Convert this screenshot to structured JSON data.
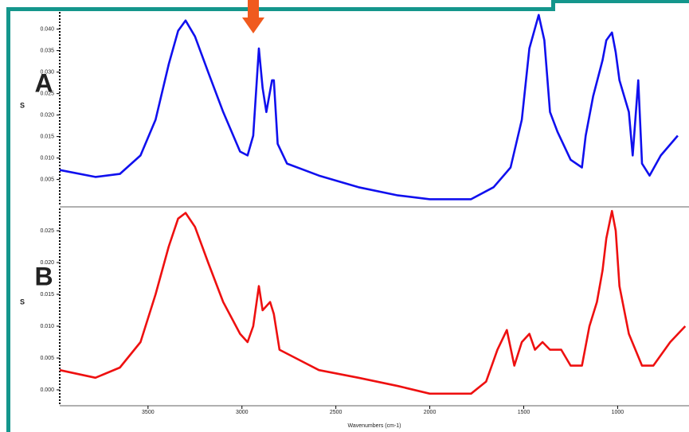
{
  "chart_data": [
    {
      "type": "line",
      "annotation": "A",
      "ylabel": "S",
      "color": "#1010ee",
      "x": [
        3970,
        3780,
        3650,
        3540,
        3460,
        3390,
        3340,
        3300,
        3250,
        3180,
        3100,
        3010,
        2970,
        2940,
        2910,
        2890,
        2870,
        2840,
        2830,
        2810,
        2760,
        2590,
        2380,
        2170,
        2000,
        1780,
        1660,
        1570,
        1510,
        1470,
        1420,
        1390,
        1360,
        1320,
        1250,
        1190,
        1170,
        1130,
        1080,
        1060,
        1030,
        1010,
        990,
        940,
        920,
        890,
        870,
        830,
        770,
        680
      ],
      "values": [
        0.0072,
        0.0056,
        0.0063,
        0.0106,
        0.0189,
        0.0318,
        0.0396,
        0.042,
        0.0383,
        0.03,
        0.0207,
        0.0115,
        0.0106,
        0.0152,
        0.0355,
        0.0263,
        0.0207,
        0.0281,
        0.0281,
        0.0133,
        0.0087,
        0.0059,
        0.0032,
        0.0013,
        0.0004,
        0.0004,
        0.0032,
        0.0078,
        0.0189,
        0.0355,
        0.0433,
        0.0374,
        0.0207,
        0.0161,
        0.0096,
        0.0078,
        0.0152,
        0.0244,
        0.0328,
        0.0374,
        0.0392,
        0.0346,
        0.0281,
        0.0207,
        0.0106,
        0.0281,
        0.0087,
        0.0059,
        0.0106,
        0.0152
      ],
      "xlim": [
        3970,
        620
      ],
      "ylim": [
        -0.001,
        0.044
      ],
      "yticks": [
        0.005,
        {
          "value": 0.01,
          "label": "0.010"
        },
        0.015,
        {
          "value": 0.02,
          "label": "0.020"
        },
        0.025,
        {
          "value": 0.03,
          "label": "0.030"
        },
        0.035,
        {
          "value": 0.04,
          "label": "0.040"
        }
      ]
    },
    {
      "type": "line",
      "annotation": "B",
      "ylabel": "S",
      "color": "#ee1010",
      "xlabel": "Wavenumbers (cm-1)",
      "x": [
        3970,
        3780,
        3650,
        3540,
        3460,
        3390,
        3340,
        3300,
        3250,
        3180,
        3100,
        3010,
        2970,
        2940,
        2910,
        2890,
        2850,
        2830,
        2800,
        2590,
        2380,
        2170,
        2000,
        1780,
        1700,
        1640,
        1590,
        1550,
        1510,
        1470,
        1440,
        1400,
        1360,
        1300,
        1250,
        1190,
        1150,
        1110,
        1080,
        1060,
        1030,
        1010,
        990,
        940,
        870,
        810,
        720,
        640
      ],
      "values": [
        0.0031,
        0.0019,
        0.0035,
        0.0075,
        0.015,
        0.0225,
        0.0269,
        0.0278,
        0.0256,
        0.02,
        0.0138,
        0.0088,
        0.0075,
        0.01,
        0.0163,
        0.0125,
        0.0138,
        0.0119,
        0.0063,
        0.0031,
        0.0019,
        0.0006,
        -0.0006,
        -0.0006,
        0.0013,
        0.0063,
        0.0094,
        0.0038,
        0.0075,
        0.0088,
        0.0063,
        0.0075,
        0.0063,
        0.0063,
        0.0038,
        0.0038,
        0.01,
        0.0138,
        0.0188,
        0.0238,
        0.0281,
        0.025,
        0.0163,
        0.0088,
        0.0038,
        0.0038,
        0.0075,
        0.01
      ],
      "xlim": [
        3970,
        620
      ],
      "ylim": [
        -0.0025,
        0.0285
      ],
      "xticks": [
        3500,
        3000,
        2500,
        2000,
        1500,
        1000
      ],
      "yticks": [
        {
          "value": 0,
          "label": "0.000"
        },
        0.005,
        {
          "value": 0.01,
          "label": "0.010"
        },
        0.015,
        {
          "value": 0.02,
          "label": "0.020"
        },
        0.025
      ]
    }
  ]
}
